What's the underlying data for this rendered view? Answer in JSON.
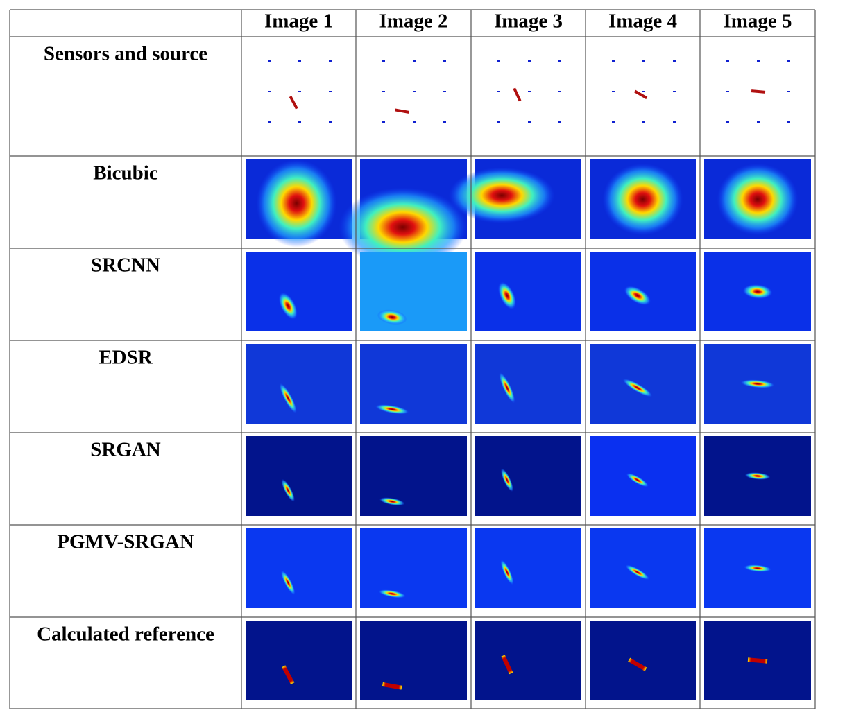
{
  "table": {
    "columns": [
      "Image 1",
      "Image 2",
      "Image 3",
      "Image 4",
      "Image 5"
    ],
    "rows": [
      "Sensors and source",
      "Bicubic",
      "SRCNN",
      "EDSR",
      "SRGAN",
      "PGMV-SRGAN",
      "Calculated reference"
    ]
  }
}
